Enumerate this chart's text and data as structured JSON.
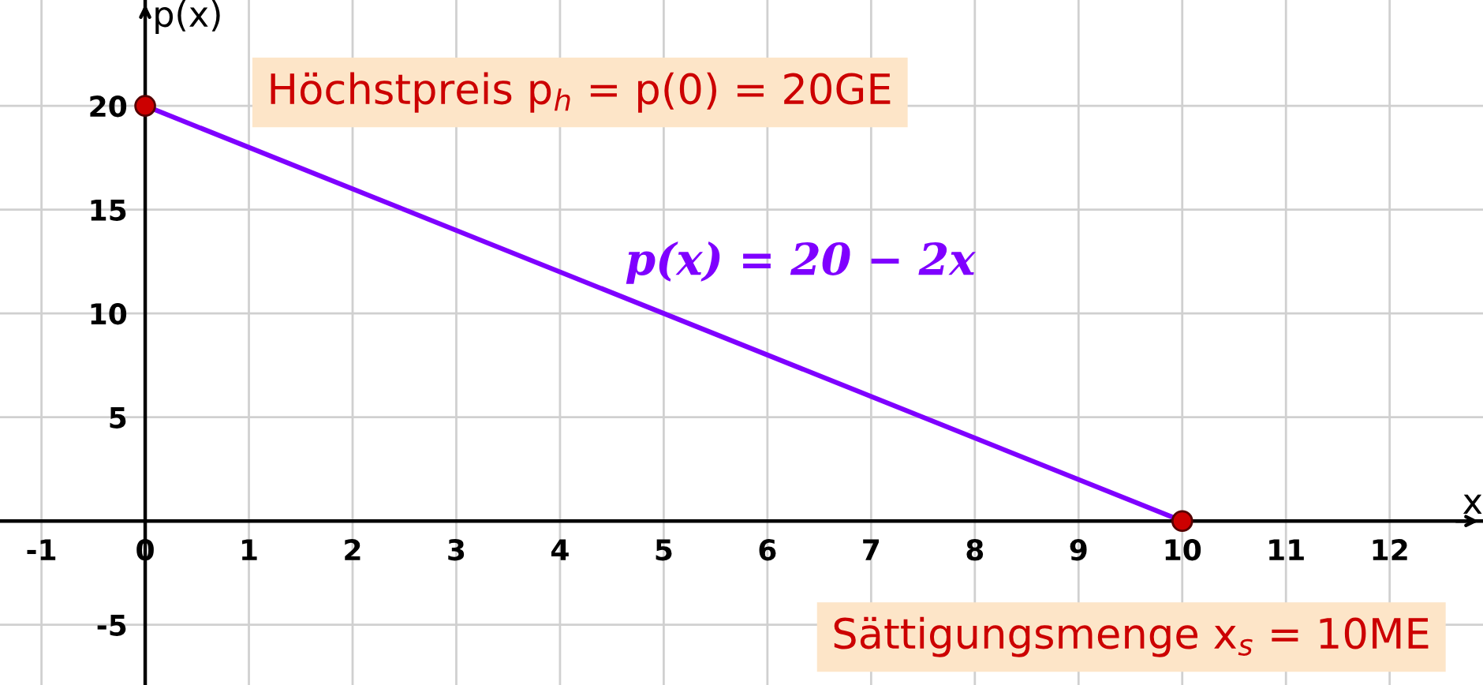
{
  "chart_data": {
    "type": "line",
    "xlabel": "x",
    "ylabel": "p(x)",
    "series": [
      {
        "name": "p(x) = 20 − 2x",
        "color": "#7f00ff",
        "values": [
          20,
          0
        ]
      },
      {
        "type": "scatter",
        "color": "#cc0000",
        "values": [
          20,
          0
        ],
        "marker": "circle"
      }
    ],
    "x": [
      0,
      10
    ],
    "annotations": [
      "Höchstpreis p$_{h}$ = p(0) = 20GE",
      "Sättigungsmenge x$_{s}$ = 10ME"
    ],
    "xlim": [
      -1.4,
      12.9
    ],
    "ylim": [
      -7.9,
      25.1
    ],
    "xticks": [
      -1,
      0,
      1,
      2,
      3,
      4,
      5,
      6,
      7,
      8,
      9,
      10,
      11,
      12
    ],
    "yticks": [
      -5,
      5,
      10,
      15,
      20
    ],
    "grid": true
  }
}
